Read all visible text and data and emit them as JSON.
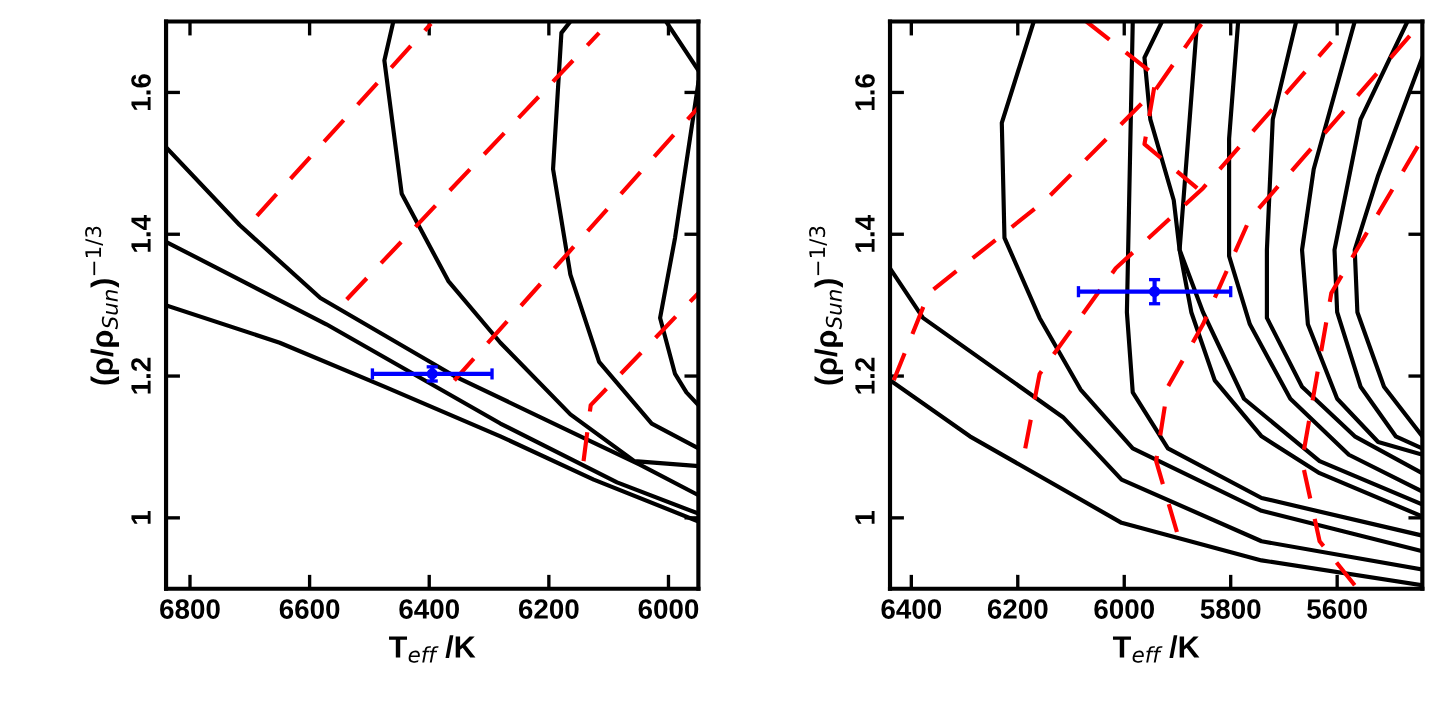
{
  "chart_data": [
    {
      "type": "line",
      "xlabel": "T$_{eff}$ /K",
      "ylabel": "(ρ/ρ$_{Sun}$)$^{−1/3}$",
      "xlim": [
        6840,
        5950
      ],
      "ylim": [
        0.9,
        1.7
      ],
      "xticks": [
        6800,
        6600,
        6400,
        6200,
        6000
      ],
      "yticks": [
        1,
        1.2,
        1.4,
        1.6
      ],
      "grid": false,
      "legend": false,
      "marker": "none",
      "series": [
        {
          "color": "#000000",
          "line_style": "solid",
          "x": [
            6837,
            6650,
            6475,
            6281,
            6125,
            5950
          ],
          "values": [
            1.299,
            1.247,
            1.185,
            1.115,
            1.054,
            0.995
          ]
        },
        {
          "color": "#000000",
          "line_style": "solid",
          "x": [
            6837,
            6572,
            6281,
            6086,
            5950
          ],
          "values": [
            1.388,
            1.273,
            1.133,
            1.05,
            1.006
          ]
        },
        {
          "color": "#000000",
          "line_style": "solid",
          "x": [
            6837,
            6717,
            6582,
            6358,
            6135,
            6048,
            5950
          ],
          "values": [
            1.52,
            1.413,
            1.31,
            1.2,
            1.11,
            1.075,
            1.032
          ]
        },
        {
          "color": "#000000",
          "line_style": "solid",
          "x": [
            6460,
            6475,
            6446,
            6368,
            6281,
            6164,
            6057,
            5950
          ],
          "values": [
            1.7,
            1.645,
            1.457,
            1.334,
            1.247,
            1.146,
            1.08,
            1.073
          ]
        },
        {
          "color": "#000000",
          "line_style": "solid",
          "x": [
            6164,
            6179,
            6193,
            6164,
            6116,
            6028,
            5950
          ],
          "values": [
            1.7,
            1.684,
            1.492,
            1.343,
            1.22,
            1.133,
            1.098
          ]
        },
        {
          "color": "#000000",
          "line_style": "solid",
          "x": [
            6004,
            5950
          ],
          "values": [
            1.7,
            1.631
          ]
        },
        {
          "color": "#000000",
          "line_style": "solid",
          "x": [
            5950,
            5989,
            6014,
            5989,
            5970,
            5950
          ],
          "values": [
            1.614,
            1.395,
            1.282,
            1.203,
            1.177,
            1.159
          ]
        },
        {
          "color": "#ff0000",
          "line_style": "dashed",
          "x": [
            6688,
            6397
          ],
          "values": [
            1.426,
            1.697
          ]
        },
        {
          "color": "#ff0000",
          "line_style": "dashed",
          "x": [
            6538,
            6116
          ],
          "values": [
            1.308,
            1.684
          ]
        },
        {
          "color": "#ff0000",
          "line_style": "dashed",
          "x": [
            6358,
            5950
          ],
          "values": [
            1.194,
            1.579
          ]
        },
        {
          "color": "#ff0000",
          "line_style": "dashed",
          "x": [
            6142,
            6130,
            5950
          ],
          "values": [
            1.08,
            1.159,
            1.317
          ]
        },
        {
          "type": "scatter",
          "marker": "circle",
          "color": "#0000ff",
          "x": [
            6395
          ],
          "values": [
            1.203
          ],
          "errors": [
            0.01
          ],
          "xerrors": [
            100
          ]
        }
      ]
    },
    {
      "type": "line",
      "xlabel": "T$_{eff}$ /K",
      "ylabel": "(ρ/ρ$_{Sun}$)$^{−1/3}$",
      "xlim": [
        6440,
        5440
      ],
      "ylim": [
        0.9,
        1.7
      ],
      "xticks": [
        6400,
        6200,
        6000,
        5800,
        5600
      ],
      "yticks": [
        1,
        1.2,
        1.4,
        1.6
      ],
      "grid": false,
      "legend": false,
      "marker": "none",
      "series": [
        {
          "color": "#000000",
          "line_style": "solid",
          "x": [
            6440,
            6290,
            6005,
            5742,
            5440
          ],
          "values": [
            1.194,
            1.115,
            0.993,
            0.94,
            0.905
          ]
        },
        {
          "color": "#000000",
          "line_style": "solid",
          "x": [
            6440,
            6378,
            6115,
            6005,
            5742,
            5440
          ],
          "values": [
            1.352,
            1.282,
            1.142,
            1.054,
            0.967,
            0.927
          ]
        },
        {
          "color": "#000000",
          "line_style": "solid",
          "x": [
            6170,
            6230,
            6225,
            6159,
            6082,
            5984,
            5742,
            5440
          ],
          "values": [
            1.7,
            1.557,
            1.395,
            1.282,
            1.181,
            1.098,
            1.01,
            0.953
          ]
        },
        {
          "color": "#000000",
          "line_style": "solid",
          "x": [
            5984,
            5995,
            5984,
            5918,
            5742,
            5440
          ],
          "values": [
            1.7,
            1.29,
            1.177,
            1.098,
            1.028,
            0.975
          ]
        },
        {
          "color": "#000000",
          "line_style": "solid",
          "x": [
            5929,
            5962,
            5951,
            5907,
            5896,
            5874,
            5830,
            5742,
            5633,
            5440
          ],
          "values": [
            1.7,
            1.649,
            1.562,
            1.448,
            1.378,
            1.29,
            1.194,
            1.115,
            1.063,
            1.002
          ]
        },
        {
          "color": "#000000",
          "line_style": "solid",
          "x": [
            5863,
            5896,
            5852,
            5775,
            5633,
            5440
          ],
          "values": [
            1.7,
            1.378,
            1.29,
            1.168,
            1.08,
            1.019
          ]
        },
        {
          "color": "#000000",
          "line_style": "solid",
          "x": [
            5786,
            5803,
            5803,
            5764,
            5688,
            5578,
            5440
          ],
          "values": [
            1.7,
            1.535,
            1.369,
            1.273,
            1.168,
            1.089,
            1.037
          ]
        },
        {
          "color": "#000000",
          "line_style": "solid",
          "x": [
            5677,
            5721,
            5732,
            5732,
            5666,
            5567,
            5440
          ],
          "values": [
            1.7,
            1.562,
            1.378,
            1.282,
            1.185,
            1.115,
            1.063
          ]
        },
        {
          "color": "#000000",
          "line_style": "solid",
          "x": [
            5567,
            5644,
            5666,
            5655,
            5600,
            5523,
            5440
          ],
          "values": [
            1.7,
            1.492,
            1.378,
            1.273,
            1.168,
            1.107,
            1.089
          ]
        },
        {
          "color": "#000000",
          "line_style": "solid",
          "x": [
            5468,
            5556,
            5605,
            5600,
            5556,
            5490,
            5440
          ],
          "values": [
            1.7,
            1.562,
            1.378,
            1.29,
            1.185,
            1.115,
            1.098
          ]
        },
        {
          "color": "#000000",
          "line_style": "solid",
          "x": [
            5440,
            5523,
            5567,
            5562,
            5512,
            5440
          ],
          "values": [
            1.649,
            1.483,
            1.378,
            1.29,
            1.185,
            1.115
          ]
        },
        {
          "color": "#ff0000",
          "line_style": "dashed",
          "x": [
            6433,
            6367,
            6148,
            5940,
            5852
          ],
          "values": [
            1.194,
            1.317,
            1.448,
            1.605,
            1.7
          ]
        },
        {
          "color": "#ff0000",
          "line_style": "dashed",
          "x": [
            6071,
            5940,
            5962,
            5863
          ],
          "values": [
            1.7,
            1.623,
            1.527,
            1.465
          ]
        },
        {
          "color": "#ff0000",
          "line_style": "dashed",
          "x": [
            6186,
            6159,
            6016,
            5852,
            5611
          ],
          "values": [
            1.098,
            1.203,
            1.352,
            1.465,
            1.671
          ]
        },
        {
          "color": "#ff0000",
          "line_style": "dashed",
          "x": [
            5901,
            5940,
            5918,
            5852,
            5764,
            5440
          ],
          "values": [
            0.98,
            1.08,
            1.185,
            1.273,
            1.422,
            1.7
          ]
        },
        {
          "color": "#ff0000",
          "line_style": "dashed",
          "x": [
            5567,
            5633,
            5666,
            5611,
            5440
          ],
          "values": [
            0.905,
            0.967,
            1.08,
            1.317,
            1.535
          ]
        },
        {
          "type": "scatter",
          "marker": "circle",
          "color": "#0000ff",
          "x": [
            5943
          ],
          "values": [
            1.319
          ],
          "errors": [
            0.017
          ],
          "xerrors": [
            143
          ]
        }
      ]
    }
  ]
}
